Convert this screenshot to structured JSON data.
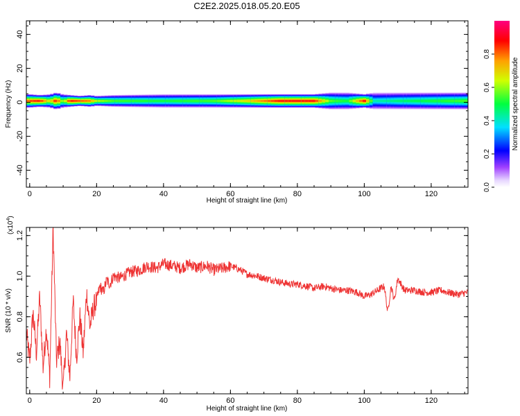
{
  "figure": {
    "title": "C2E2.2025.018.05.20.E05"
  },
  "chart_data": [
    {
      "type": "heatmap",
      "title": "",
      "xlabel": "Height of straight line (km)",
      "ylabel": "Frequency (Hz)",
      "xlim": [
        -1,
        131
      ],
      "ylim": [
        -50,
        48
      ],
      "xticks": [
        "0",
        "20",
        "40",
        "60",
        "80",
        "100",
        "120"
      ],
      "yticks": [
        "-40",
        "-20",
        "0",
        "20",
        "40"
      ],
      "band_center_hz": 0.8,
      "band_profile": [
        {
          "x": -1,
          "halfwidth_hz": 4,
          "peak": 0.85
        },
        {
          "x": 0,
          "halfwidth_hz": 4,
          "peak": 0.9
        },
        {
          "x": 3,
          "halfwidth_hz": 3.5,
          "peak": 0.95
        },
        {
          "x": 6,
          "halfwidth_hz": 4,
          "peak": 0.7
        },
        {
          "x": 8,
          "halfwidth_hz": 5,
          "peak": 0.95
        },
        {
          "x": 10,
          "halfwidth_hz": 4,
          "peak": 0.6
        },
        {
          "x": 12,
          "halfwidth_hz": 3.5,
          "peak": 0.95
        },
        {
          "x": 15,
          "halfwidth_hz": 3,
          "peak": 0.9
        },
        {
          "x": 18,
          "halfwidth_hz": 3.5,
          "peak": 0.85
        },
        {
          "x": 20,
          "halfwidth_hz": 3,
          "peak": 0.7
        },
        {
          "x": 25,
          "halfwidth_hz": 3.5,
          "peak": 0.6
        },
        {
          "x": 40,
          "halfwidth_hz": 4,
          "peak": 0.55
        },
        {
          "x": 55,
          "halfwidth_hz": 4,
          "peak": 0.6
        },
        {
          "x": 65,
          "halfwidth_hz": 4,
          "peak": 0.75
        },
        {
          "x": 75,
          "halfwidth_hz": 4,
          "peak": 0.95
        },
        {
          "x": 85,
          "halfwidth_hz": 4,
          "peak": 0.95
        },
        {
          "x": 90,
          "halfwidth_hz": 5,
          "peak": 0.6
        },
        {
          "x": 95,
          "halfwidth_hz": 5,
          "peak": 0.55
        },
        {
          "x": 100,
          "halfwidth_hz": 4,
          "peak": 0.95
        },
        {
          "x": 103,
          "halfwidth_hz": 5,
          "peak": 0.45
        },
        {
          "x": 110,
          "halfwidth_hz": 5,
          "peak": 0.5
        },
        {
          "x": 120,
          "halfwidth_hz": 5,
          "peak": 0.55
        },
        {
          "x": 131,
          "halfwidth_hz": 5,
          "peak": 0.6
        }
      ],
      "colorbar": {
        "label": "Normalized spectral amplitude",
        "range": [
          0,
          1
        ],
        "ticks": [
          "0.0",
          "0.2",
          "0.4",
          "0.6",
          "0.8"
        ],
        "scale": "rainbow (white → violet → blue → cyan → green → yellow → orange → red → magenta)"
      }
    },
    {
      "type": "line",
      "title": "",
      "xlabel": "Height of straight line (km)",
      "ylabel": "SNR (10 * v/v)",
      "scale_note": "(x10",
      "scale_exp": "4",
      "scale_close": ")",
      "xlim": [
        -1,
        131
      ],
      "ylim": [
        0.42,
        1.24
      ],
      "xticks": [
        "0",
        "20",
        "40",
        "60",
        "80",
        "100",
        "120"
      ],
      "yticks": [
        "0.6",
        "0.8",
        "1.0",
        "1.2"
      ],
      "color": "#ee3333",
      "series": [
        {
          "x": [
            -1,
            0,
            1,
            2,
            3,
            4,
            5,
            6,
            7,
            8,
            9,
            10,
            11,
            12,
            13,
            14,
            15,
            16,
            17,
            18,
            19,
            20,
            21,
            22,
            23,
            24,
            25,
            27,
            30,
            33,
            35,
            38,
            40,
            43,
            45,
            48,
            50,
            53,
            55,
            58,
            60,
            63,
            65,
            68,
            70,
            73,
            75,
            78,
            80,
            83,
            85,
            88,
            90,
            93,
            95,
            98,
            100,
            102,
            104,
            106,
            107,
            108,
            109,
            110,
            112,
            115,
            118,
            120,
            123,
            125,
            128,
            131
          ],
          "y": [
            0.72,
            0.58,
            0.82,
            0.62,
            0.9,
            0.55,
            0.75,
            0.5,
            1.24,
            0.58,
            0.68,
            0.44,
            0.72,
            0.5,
            0.88,
            0.6,
            0.8,
            0.62,
            0.92,
            0.75,
            0.84,
            0.88,
            0.95,
            0.92,
            0.98,
            0.96,
            1.0,
            0.99,
            1.02,
            1.03,
            1.05,
            1.04,
            1.06,
            1.05,
            1.04,
            1.06,
            1.04,
            1.05,
            1.03,
            1.04,
            1.05,
            1.03,
            1.01,
            1.0,
            0.99,
            0.98,
            0.97,
            0.96,
            0.96,
            0.95,
            0.94,
            0.95,
            0.94,
            0.93,
            0.93,
            0.92,
            0.9,
            0.91,
            0.93,
            0.95,
            0.82,
            0.95,
            0.88,
            0.99,
            0.93,
            0.93,
            0.92,
            0.92,
            0.93,
            0.92,
            0.91,
            0.92
          ]
        }
      ]
    }
  ]
}
